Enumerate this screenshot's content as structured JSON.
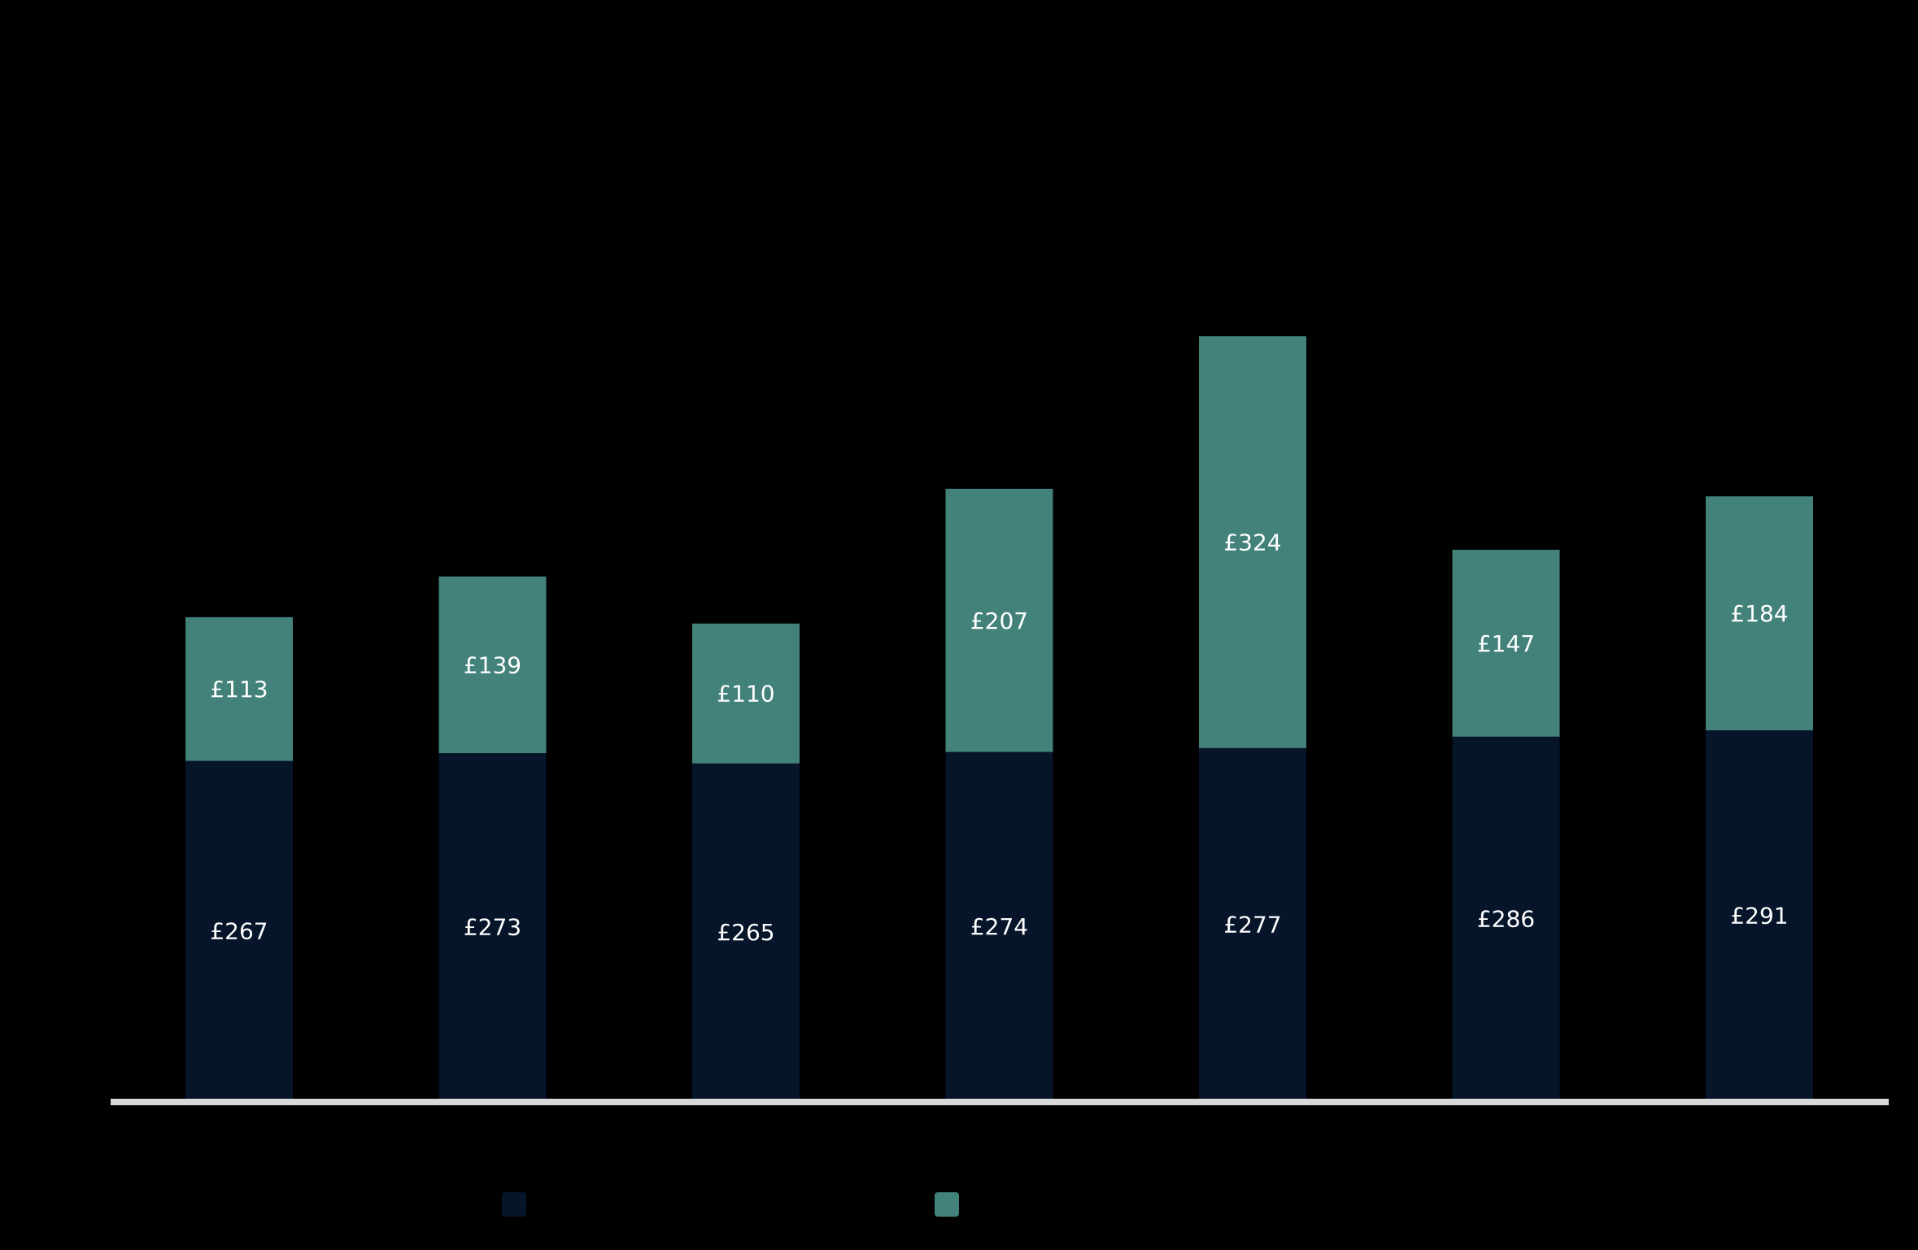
{
  "chart_data": {
    "type": "bar",
    "stacked": true,
    "title": "",
    "xlabel": "",
    "ylabel": "",
    "categories": [
      "",
      "",
      "",
      "",
      "",
      "",
      ""
    ],
    "ylim": [
      0,
      600
    ],
    "grid": false,
    "legend_position": "bottom",
    "series": [
      {
        "color": "#06152a",
        "values": [
          267,
          273,
          265,
          274,
          277,
          286,
          291
        ],
        "labels": [
          "£267",
          "£273",
          "£265",
          "£274",
          "£277",
          "£286",
          "£291"
        ]
      },
      {
        "color": "#42827a",
        "values": [
          113,
          139,
          110,
          207,
          324,
          147,
          184
        ],
        "labels": [
          "£113",
          "£139",
          "£110",
          "£207",
          "£324",
          "£147",
          "£184"
        ]
      }
    ],
    "axis_color": "#d9d9d9",
    "background": "#000000"
  }
}
